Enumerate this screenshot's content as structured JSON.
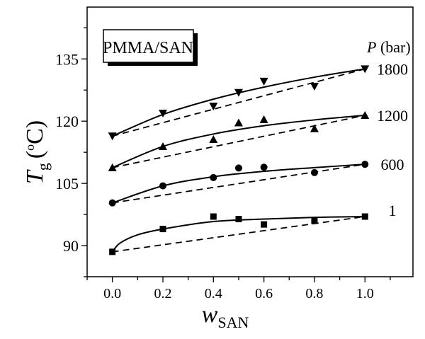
{
  "chart_data": {
    "type": "scatter",
    "title": "",
    "annotation_box": "PMMA/SAN",
    "xlabel": {
      "main": "w",
      "sub": "SAN"
    },
    "ylabel": {
      "main": "T",
      "sub": "g",
      "unit": "(°C)",
      "unit_prefix": "(",
      "unit_deg": "o",
      "unit_rest": "C)"
    },
    "xlim": [
      -0.1,
      1.19
    ],
    "ylim": [
      82.5,
      147.5
    ],
    "xticks": [
      0.0,
      0.2,
      0.4,
      0.6,
      0.8,
      1.0
    ],
    "xtick_labels": [
      "0.0",
      "0.2",
      "0.4",
      "0.6",
      "0.8",
      "1.0"
    ],
    "yticks": [
      90,
      105,
      120,
      135
    ],
    "ytick_labels": [
      "90",
      "105",
      "120",
      "135"
    ],
    "grid": false,
    "legend_title": {
      "main": "P",
      "rest": " (bar)"
    },
    "legend_placement": "right",
    "series": [
      {
        "name": "1",
        "marker": "square",
        "x": [
          0.0,
          0.2,
          0.4,
          0.5,
          0.6,
          0.8,
          1.0
        ],
        "y": [
          88.5,
          94.0,
          97.0,
          96.4,
          95.1,
          96.0,
          97.0
        ],
        "fit_x": [
          0.0,
          0.03,
          0.1,
          0.2,
          0.4,
          0.6,
          0.8,
          1.0
        ],
        "fit_y": [
          88.5,
          90.6,
          92.6,
          94.0,
          95.8,
          96.4,
          96.8,
          97.0
        ]
      },
      {
        "name": "600",
        "marker": "circle",
        "x": [
          0.0,
          0.2,
          0.4,
          0.5,
          0.6,
          0.8,
          1.0
        ],
        "y": [
          100.3,
          104.4,
          106.4,
          108.7,
          108.9,
          107.6,
          109.6
        ],
        "fit_x": [
          0.0,
          0.2,
          0.4,
          0.6,
          0.8,
          1.0
        ],
        "fit_y": [
          100.3,
          104.4,
          106.6,
          107.9,
          108.8,
          109.6
        ]
      },
      {
        "name": "1200",
        "marker": "triangle-up",
        "x": [
          0.0,
          0.2,
          0.4,
          0.5,
          0.6,
          0.8,
          1.0
        ],
        "y": [
          108.8,
          113.9,
          115.6,
          119.6,
          120.4,
          118.2,
          121.4
        ],
        "fit_x": [
          0.0,
          0.2,
          0.4,
          0.6,
          0.8,
          1.0
        ],
        "fit_y": [
          108.8,
          113.9,
          116.9,
          118.9,
          120.3,
          121.4
        ]
      },
      {
        "name": "1800",
        "marker": "triangle-down",
        "x": [
          0.0,
          0.2,
          0.4,
          0.5,
          0.6,
          0.8,
          1.0
        ],
        "y": [
          116.4,
          121.9,
          123.6,
          126.9,
          129.6,
          128.4,
          132.6
        ],
        "fit_x": [
          0.0,
          0.2,
          0.4,
          0.6,
          0.8,
          1.0
        ],
        "fit_y": [
          116.4,
          121.6,
          125.3,
          128.2,
          130.6,
          132.6
        ]
      }
    ]
  }
}
